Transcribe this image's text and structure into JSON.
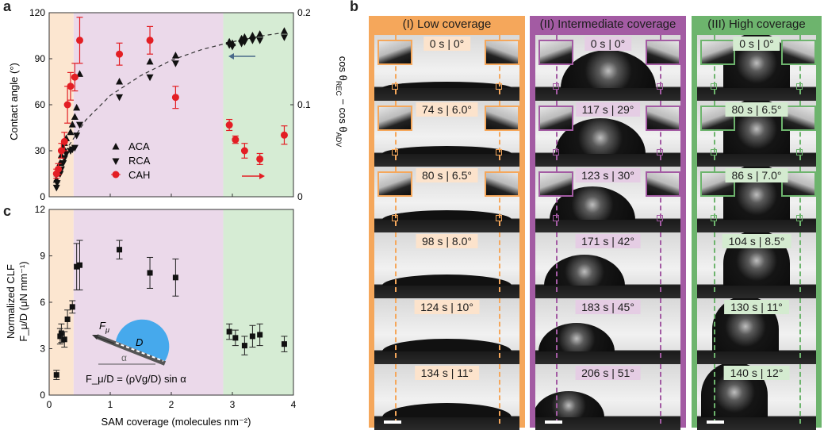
{
  "figure": {
    "panel_letters": {
      "a": "a",
      "b": "b",
      "c": "c"
    },
    "colors": {
      "low": "#f5a75b",
      "intermediate": "#a35ba3",
      "high": "#6db46d",
      "low_bg": "#fce6d0",
      "intermediate_bg": "#ebd9ea",
      "high_bg": "#d6ecd4",
      "cah": "#e31e24",
      "droplet": "#46a9ec"
    }
  },
  "panel_a": {
    "ylabel_left": "Contact angle (°)",
    "ylabel_right": "cos θ_REC − cos θ_ADV",
    "ylabel_right_parts": [
      "cos θ",
      "REC",
      " − cos θ",
      "ADV"
    ],
    "left_ticks": [
      "0",
      "30",
      "60",
      "90",
      "120"
    ],
    "right_ticks": [
      "0",
      "0.1",
      "0.2"
    ],
    "legend": [
      "ACA",
      "RCA",
      "CAH"
    ]
  },
  "panel_c": {
    "ylabel_line1": "Normalized CLF",
    "ylabel_line2": "F_μ/D (μN mm⁻¹)",
    "ticks_y": [
      "0",
      "3",
      "6",
      "9",
      "12"
    ],
    "ticks_x": [
      "0",
      "1",
      "2",
      "3",
      "4"
    ],
    "xlabel": "SAM coverage (molecules nm⁻²)",
    "inset_force": "F",
    "inset_force_sub": "μ",
    "inset_D": "D",
    "inset_alpha": "α",
    "inset_equation": "F_μ/D = (ρVg/D) sin α"
  },
  "chart_data": [
    {
      "type": "scatter",
      "title": "",
      "xlabel": "SAM coverage (molecules nm⁻²)",
      "ylabel": "Contact angle (°)",
      "xlim": [
        0,
        4
      ],
      "ylim": [
        0,
        120
      ],
      "ylim_right": [
        0,
        0.2
      ],
      "regions": [
        {
          "name": "low",
          "x": [
            0,
            0.4
          ]
        },
        {
          "name": "intermediate",
          "x": [
            0.4,
            2.85
          ]
        },
        {
          "name": "high",
          "x": [
            2.85,
            4
          ]
        }
      ],
      "series": [
        {
          "name": "ACA",
          "marker": "triangle-up",
          "axis": "left",
          "x": [
            0.12,
            0.13,
            0.18,
            0.2,
            0.23,
            0.25,
            0.28,
            0.35,
            0.38,
            0.42,
            0.45,
            0.5,
            1.15,
            1.65,
            2.07,
            2.95,
            3.0,
            3.15,
            3.2,
            3.33,
            3.45,
            3.85
          ],
          "y": [
            11,
            15,
            22,
            27,
            32,
            35,
            38,
            42,
            47,
            52,
            58,
            80,
            75,
            88,
            92,
            101,
            100,
            103,
            104,
            105,
            106,
            108
          ]
        },
        {
          "name": "RCA",
          "marker": "triangle-down",
          "axis": "left",
          "x": [
            0.12,
            0.13,
            0.18,
            0.2,
            0.23,
            0.25,
            0.28,
            0.35,
            0.38,
            0.42,
            0.45,
            0.5,
            1.15,
            1.65,
            2.07,
            2.95,
            3.0,
            3.15,
            3.2,
            3.33,
            3.45,
            3.85
          ],
          "y": [
            6,
            9,
            15,
            18,
            22,
            25,
            28,
            30,
            31,
            32,
            40,
            47,
            65,
            78,
            87,
            99,
            98,
            100,
            101,
            102,
            102,
            104
          ]
        },
        {
          "name": "CAH",
          "marker": "circle",
          "axis": "right",
          "x": [
            0.12,
            0.15,
            0.2,
            0.25,
            0.3,
            0.35,
            0.42,
            0.5,
            1.15,
            1.65,
            2.07,
            2.95,
            3.05,
            3.2,
            3.45,
            3.85
          ],
          "y": [
            0.025,
            0.03,
            0.05,
            0.06,
            0.1,
            0.12,
            0.13,
            0.17,
            0.155,
            0.17,
            0.108,
            0.078,
            0.062,
            0.05,
            0.041,
            0.067
          ],
          "err": [
            0.005,
            0.006,
            0.008,
            0.01,
            0.02,
            0.015,
            0.015,
            0.025,
            0.012,
            0.015,
            0.012,
            0.006,
            0.004,
            0.008,
            0.006,
            0.01
          ]
        },
        {
          "name": "fit",
          "marker": "dashed-line",
          "axis": "left",
          "x": [
            0.1,
            0.3,
            0.6,
            1.0,
            1.5,
            2.0,
            2.5,
            3.0,
            3.5,
            3.85
          ],
          "y": [
            12,
            32,
            50,
            66,
            79,
            89,
            96,
            101,
            105,
            107
          ]
        }
      ]
    },
    {
      "type": "scatter",
      "title": "",
      "xlabel": "SAM coverage (molecules nm⁻²)",
      "ylabel": "Normalized CLF F_μ/D (μN mm⁻¹)",
      "xlim": [
        0,
        4
      ],
      "ylim": [
        0,
        12
      ],
      "series": [
        {
          "name": "CLF",
          "marker": "square",
          "x": [
            0.12,
            0.18,
            0.2,
            0.25,
            0.3,
            0.38,
            0.45,
            0.5,
            1.15,
            1.65,
            2.07,
            2.95,
            3.05,
            3.2,
            3.33,
            3.45,
            3.85
          ],
          "y": [
            1.3,
            3.8,
            4.0,
            3.6,
            4.9,
            5.7,
            8.3,
            8.4,
            9.4,
            7.9,
            7.6,
            4.1,
            3.7,
            3.2,
            3.8,
            3.9,
            3.3
          ],
          "err": [
            0.3,
            0.5,
            0.6,
            0.5,
            0.6,
            0.4,
            1.5,
            1.6,
            0.6,
            1.0,
            1.2,
            0.5,
            0.5,
            0.6,
            0.7,
            0.7,
            0.5
          ]
        }
      ]
    }
  ],
  "panel_b": {
    "columns": [
      {
        "title": "(I) Low coverage",
        "labels": [
          "0 s | 0°",
          "74 s | 6.0°",
          "80 s | 6.5°",
          "98 s | 8.0°",
          "124 s | 10°",
          "134 s | 11°"
        ]
      },
      {
        "title": "(II) Intermediate coverage",
        "labels": [
          "0 s | 0°",
          "117 s | 29°",
          "123 s | 30°",
          "171 s | 42°",
          "183 s | 45°",
          "206 s | 51°"
        ]
      },
      {
        "title": "(III) High coverage",
        "labels": [
          "0 s | 0°",
          "80 s | 6.5°",
          "86 s | 7.0°",
          "104 s | 8.5°",
          "130 s | 11°",
          "140 s | 12°"
        ]
      }
    ]
  }
}
